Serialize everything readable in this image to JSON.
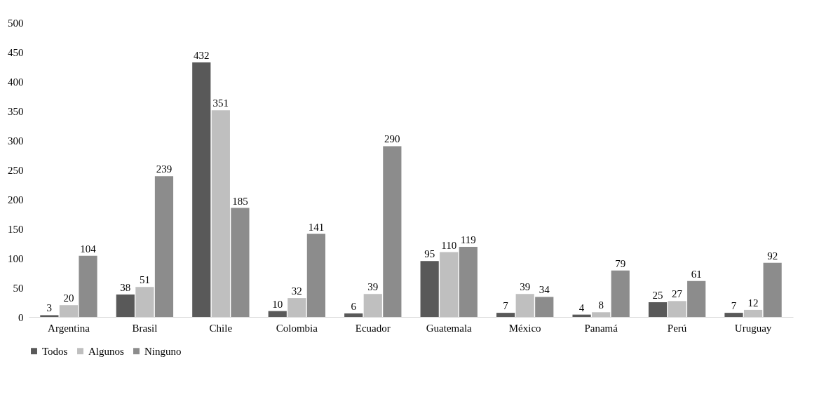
{
  "chart_data": {
    "type": "bar",
    "categories": [
      "Argentina",
      "Brasil",
      "Chile",
      "Colombia",
      "Ecuador",
      "Guatemala",
      "México",
      "Panamá",
      "Perú",
      "Uruguay"
    ],
    "series": [
      {
        "name": "Todos",
        "color": "#595959",
        "values": [
          3,
          38,
          432,
          10,
          6,
          95,
          7,
          4,
          25,
          7
        ]
      },
      {
        "name": "Algunos",
        "color": "#bfbfbf",
        "values": [
          20,
          51,
          351,
          32,
          39,
          110,
          39,
          8,
          27,
          12
        ]
      },
      {
        "name": "Ninguno",
        "color": "#8c8c8c",
        "values": [
          104,
          239,
          185,
          141,
          290,
          119,
          34,
          79,
          61,
          92
        ]
      }
    ],
    "ylim": [
      0,
      500
    ],
    "yticks": [
      0,
      50,
      100,
      150,
      200,
      250,
      300,
      350,
      400,
      450,
      500
    ],
    "grid": false,
    "legend": "bottom",
    "data_labels": true
  }
}
